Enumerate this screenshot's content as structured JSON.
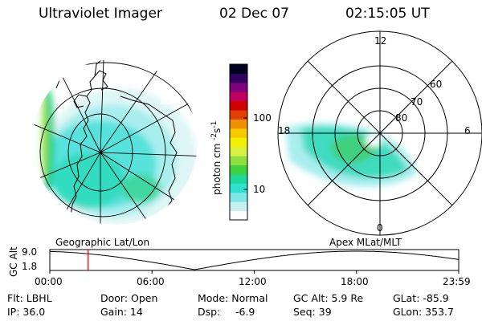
{
  "header": {
    "instrument": "Ultraviolet Imager",
    "date": "02 Dec 07",
    "time": "02:15:05 UT"
  },
  "panels": {
    "left_label": "Geographic Lat/Lon",
    "right_label": "Apex MLat/MLT"
  },
  "colorbar": {
    "unit_label": "photon cm",
    "unit_exp1": "-2",
    "unit_mid": "s",
    "unit_exp2": "-1",
    "tick_high": "100",
    "tick_low": "10",
    "colors": [
      "#ffffff",
      "#c8f0f0",
      "#7fe6e6",
      "#30e0d0",
      "#20d89a",
      "#40d040",
      "#8ee040",
      "#d8f040",
      "#f0f000",
      "#f8c800",
      "#f09000",
      "#e04000",
      "#d00000",
      "#c00060",
      "#800080",
      "#300060",
      "#000020"
    ]
  },
  "polar": {
    "lat_labels": [
      "80",
      "70",
      "60"
    ],
    "mlt_labels": {
      "top": "12",
      "left": "18",
      "right": "6",
      "bottom": "0"
    }
  },
  "altitude_strip": {
    "axis_label": "GC Alt",
    "y_ticks": [
      "9.0",
      "1.8"
    ],
    "x_ticks": [
      "00:00",
      "06:00",
      "12:00",
      "18:00",
      "23:59"
    ],
    "current_marker_hours": 2.25,
    "marker_color": "#ff0000"
  },
  "info": {
    "flt": "Flt: LBHL",
    "door": "Door: Open",
    "mode": "Mode: Normal",
    "gc_alt": "GC Alt: 5.9 Re",
    "glat": "GLat: -85.9",
    "ip": "IP: 36.0",
    "gain": "Gain: 14",
    "dsp_label": "Dsp:",
    "dsp_value": "-6.9",
    "seq": "Seq: 39",
    "glon": "GLon: 353.7"
  }
}
